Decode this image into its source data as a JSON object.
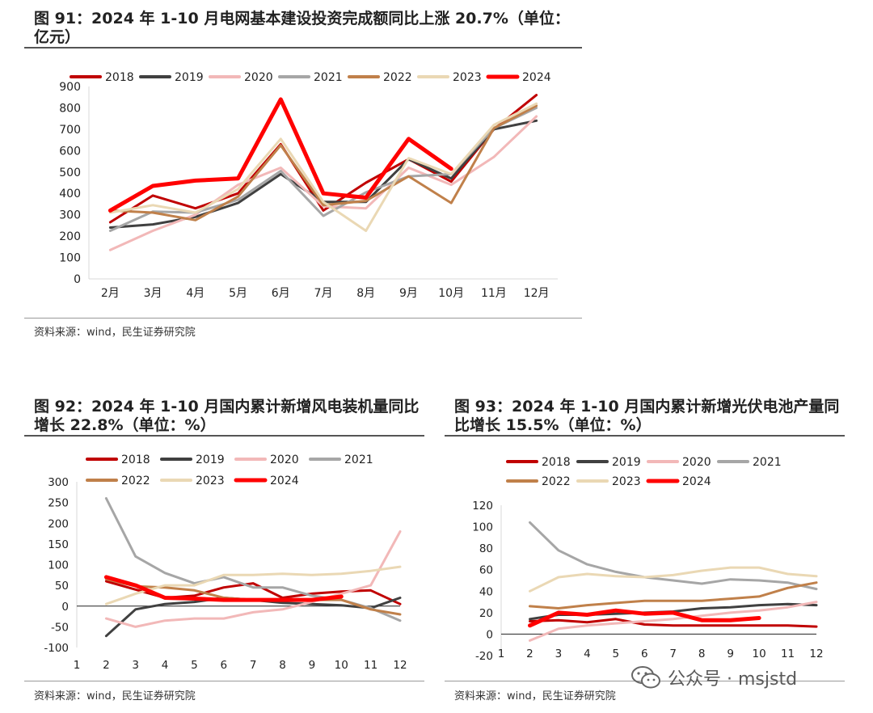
{
  "colors": {
    "2018": "#c00000",
    "2019": "#404040",
    "2020": "#f2b8b8",
    "2021": "#a6a6a6",
    "2022": "#c0804a",
    "2023": "#ead8b4",
    "2024": "#ff0000"
  },
  "fig91": {
    "title": "图 91：2024 年 1-10 月电网基本建设投资完成额同比上涨 20.7%（单位：亿元）",
    "source": "资料来源：wind，民生证券研究院"
  },
  "fig92": {
    "title": "图 92：2024 年 1-10 月国内累计新增风电装机量同比增长 22.8%（单位：%）",
    "source": "资料来源：wind，民生证券研究院"
  },
  "fig93": {
    "title": "图 93：2024 年 1-10 月国内累计新增光伏电池产量同比增长 15.5%（单位：%）",
    "source": "资料来源：wind，民生证券研究院"
  },
  "watermark": {
    "text": "公众号 · msjstd",
    "icon": "wechat-icon"
  },
  "chart_data": [
    {
      "id": "fig91",
      "type": "line",
      "categories": [
        "2月",
        "3月",
        "4月",
        "5月",
        "6月",
        "7月",
        "8月",
        "9月",
        "10月",
        "11月",
        "12月"
      ],
      "ylim": [
        0,
        900
      ],
      "yticks": [
        0,
        100,
        200,
        300,
        400,
        500,
        600,
        700,
        800,
        900
      ],
      "legend_position": "top",
      "series": [
        {
          "name": "2018",
          "values": [
            265,
            390,
            330,
            400,
            630,
            320,
            450,
            560,
            455,
            700,
            860
          ]
        },
        {
          "name": "2019",
          "values": [
            240,
            255,
            290,
            355,
            490,
            360,
            360,
            560,
            470,
            700,
            740
          ]
        },
        {
          "name": "2020",
          "values": [
            135,
            225,
            300,
            440,
            520,
            340,
            330,
            520,
            440,
            570,
            760
          ]
        },
        {
          "name": "2021",
          "values": [
            225,
            315,
            310,
            370,
            505,
            295,
            405,
            480,
            490,
            705,
            800
          ]
        },
        {
          "name": "2022",
          "values": [
            320,
            310,
            275,
            385,
            625,
            345,
            365,
            480,
            355,
            705,
            810
          ]
        },
        {
          "name": "2023",
          "values": [
            310,
            345,
            310,
            420,
            655,
            360,
            225,
            565,
            490,
            720,
            820
          ]
        },
        {
          "name": "2024",
          "values": [
            320,
            435,
            460,
            470,
            840,
            400,
            380,
            655,
            515,
            null,
            null
          ]
        }
      ]
    },
    {
      "id": "fig92",
      "type": "line",
      "categories": [
        "1",
        "2",
        "3",
        "4",
        "5",
        "6",
        "7",
        "8",
        "9",
        "10",
        "11",
        "12"
      ],
      "ylim": [
        -100,
        300
      ],
      "yticks": [
        -100,
        -50,
        0,
        50,
        100,
        150,
        200,
        250,
        300
      ],
      "legend_position": "top",
      "series": [
        {
          "name": "2018",
          "values": [
            null,
            60,
            40,
            20,
            25,
            45,
            55,
            20,
            30,
            35,
            38,
            5
          ]
        },
        {
          "name": "2019",
          "values": [
            null,
            -72,
            -8,
            5,
            10,
            20,
            15,
            8,
            5,
            2,
            -5,
            20
          ]
        },
        {
          "name": "2020",
          "values": [
            null,
            -30,
            -50,
            -35,
            -30,
            -30,
            -15,
            -8,
            10,
            30,
            50,
            180
          ]
        },
        {
          "name": "2021",
          "values": [
            null,
            260,
            120,
            80,
            55,
            70,
            45,
            45,
            25,
            15,
            -5,
            -35
          ]
        },
        {
          "name": "2022",
          "values": [
            null,
            65,
            48,
            45,
            38,
            20,
            15,
            15,
            15,
            15,
            -8,
            -20
          ]
        },
        {
          "name": "2023",
          "values": [
            null,
            5,
            30,
            50,
            50,
            75,
            75,
            78,
            75,
            78,
            85,
            95
          ]
        },
        {
          "name": "2024",
          "values": [
            null,
            70,
            50,
            20,
            18,
            15,
            15,
            15,
            15,
            23,
            null,
            null
          ]
        }
      ]
    },
    {
      "id": "fig93",
      "type": "line",
      "categories": [
        "1",
        "2",
        "3",
        "4",
        "5",
        "6",
        "7",
        "8",
        "9",
        "10",
        "11",
        "12"
      ],
      "ylim": [
        -20,
        120
      ],
      "yticks": [
        -20,
        0,
        20,
        40,
        60,
        80,
        100,
        120
      ],
      "legend_position": "top",
      "series": [
        {
          "name": "2018",
          "values": [
            null,
            12,
            13,
            11,
            14,
            9,
            8,
            8,
            8,
            8,
            8,
            7
          ]
        },
        {
          "name": "2019",
          "values": [
            null,
            14,
            18,
            18,
            19,
            20,
            21,
            24,
            25,
            27,
            28,
            27
          ]
        },
        {
          "name": "2020",
          "values": [
            null,
            -6,
            5,
            8,
            10,
            12,
            14,
            17,
            20,
            22,
            25,
            30
          ]
        },
        {
          "name": "2021",
          "values": [
            null,
            104,
            78,
            65,
            58,
            53,
            50,
            47,
            51,
            50,
            48,
            42
          ]
        },
        {
          "name": "2022",
          "values": [
            null,
            26,
            24,
            27,
            29,
            31,
            31,
            31,
            33,
            35,
            43,
            48
          ]
        },
        {
          "name": "2023",
          "values": [
            null,
            40,
            53,
            56,
            54,
            53,
            55,
            59,
            62,
            62,
            56,
            54
          ]
        },
        {
          "name": "2024",
          "values": [
            null,
            8,
            20,
            18,
            22,
            19,
            20,
            13,
            13,
            15,
            null,
            null
          ]
        }
      ]
    }
  ]
}
